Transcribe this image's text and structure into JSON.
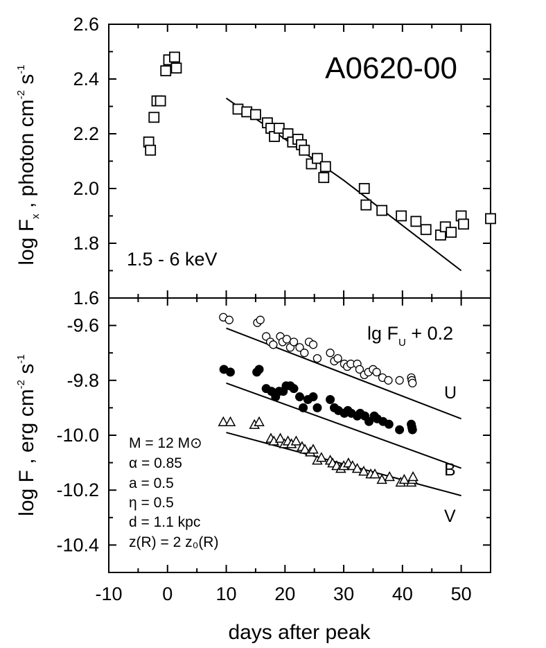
{
  "chart_data": {
    "type": "scatter",
    "x_axis": {
      "label": "days after peak",
      "range": [
        -10,
        55
      ],
      "ticks": [
        "-10",
        "0",
        "10",
        "20",
        "30",
        "40",
        "50"
      ]
    },
    "top_panel": {
      "title": "A0620-00",
      "energy_band": "1.5 - 6 keV",
      "ylabel": "log F_x , photon cm^-2 s^-1",
      "ylabel_parts": [
        "log F",
        "x",
        " ,  photon cm",
        "-2",
        " s",
        "-1"
      ],
      "yrange": [
        1.6,
        2.6
      ],
      "yticks": [
        "1.6",
        "1.8",
        "2.0",
        "2.2",
        "2.4",
        "2.6"
      ],
      "observed_points": [
        [
          -3.2,
          2.17
        ],
        [
          -2.9,
          2.14
        ],
        [
          -2.3,
          2.26
        ],
        [
          -1.8,
          2.32
        ],
        [
          -1.2,
          2.32
        ],
        [
          -0.3,
          2.43
        ],
        [
          0.2,
          2.47
        ],
        [
          1.2,
          2.48
        ],
        [
          1.5,
          2.44
        ],
        [
          12,
          2.29
        ],
        [
          13.5,
          2.28
        ],
        [
          15,
          2.27
        ],
        [
          17,
          2.24
        ],
        [
          17.6,
          2.22
        ],
        [
          18.2,
          2.19
        ],
        [
          19,
          2.22
        ],
        [
          20.5,
          2.2
        ],
        [
          21.3,
          2.17
        ],
        [
          22.2,
          2.18
        ],
        [
          22.8,
          2.16
        ],
        [
          23.3,
          2.14
        ],
        [
          24.5,
          2.09
        ],
        [
          25.5,
          2.11
        ],
        [
          26.6,
          2.04
        ],
        [
          26.9,
          2.08
        ],
        [
          33.5,
          2.0
        ],
        [
          33.8,
          1.94
        ],
        [
          36.5,
          1.92
        ],
        [
          39.8,
          1.9
        ],
        [
          42.3,
          1.88
        ],
        [
          44,
          1.85
        ],
        [
          46.5,
          1.83
        ],
        [
          47.3,
          1.86
        ],
        [
          48.3,
          1.84
        ],
        [
          50,
          1.9
        ],
        [
          50.4,
          1.87
        ],
        [
          55,
          1.89
        ]
      ],
      "model_line": [
        [
          10,
          2.33
        ],
        [
          30,
          2.03
        ],
        [
          50,
          1.7
        ]
      ]
    },
    "bottom_panel": {
      "ylabel": "log F ,  erg cm^-2 s^-1",
      "ylabel_parts": [
        "log F ,  erg cm",
        "-2",
        " s",
        "-1"
      ],
      "yrange": [
        -10.5,
        -9.5
      ],
      "yticks": [
        "-10.4",
        "-10.2",
        "-10.0",
        "-9.8",
        "-9.6"
      ],
      "offset_note": "lg F_U + 0.2",
      "offset_note_parts": [
        "lg F",
        "U",
        " + 0.2"
      ],
      "parameters": [
        "M = 12 M⊙",
        "α = 0.85",
        "a = 0.5",
        "η = 0.5",
        "d = 1.1 kpc",
        "z(R) = 2 z₀(R)"
      ],
      "series": [
        {
          "name": "U",
          "marker": "open-circle",
          "points": [
            [
              9.5,
              -9.57
            ],
            [
              10.5,
              -9.58
            ],
            [
              15.3,
              -9.59
            ],
            [
              15.8,
              -9.58
            ],
            [
              16.8,
              -9.64
            ],
            [
              17.5,
              -9.66
            ],
            [
              18,
              -9.67
            ],
            [
              19.2,
              -9.64
            ],
            [
              19.6,
              -9.66
            ],
            [
              20.3,
              -9.65
            ],
            [
              20.9,
              -9.68
            ],
            [
              21.5,
              -9.66
            ],
            [
              22.5,
              -9.68
            ],
            [
              23.3,
              -9.7
            ],
            [
              24.1,
              -9.66
            ],
            [
              24.8,
              -9.67
            ],
            [
              25.5,
              -9.72
            ],
            [
              27.7,
              -9.7
            ],
            [
              28.4,
              -9.73
            ],
            [
              29,
              -9.72
            ],
            [
              30.1,
              -9.74
            ],
            [
              30.6,
              -9.75
            ],
            [
              31.2,
              -9.74
            ],
            [
              32.3,
              -9.74
            ],
            [
              32.7,
              -9.76
            ],
            [
              33.5,
              -9.78
            ],
            [
              34.2,
              -9.77
            ],
            [
              35,
              -9.76
            ],
            [
              35.6,
              -9.77
            ],
            [
              36.6,
              -9.79
            ],
            [
              37.6,
              -9.8
            ],
            [
              39.5,
              -9.8
            ],
            [
              41.5,
              -9.79
            ],
            [
              41.6,
              -9.8
            ],
            [
              41.7,
              -9.81
            ]
          ],
          "model_line": [
            [
              10,
              -9.61
            ],
            [
              50,
              -9.94
            ]
          ]
        },
        {
          "name": "B",
          "marker": "filled-circle",
          "points": [
            [
              9.6,
              -9.76
            ],
            [
              10.7,
              -9.77
            ],
            [
              15.2,
              -9.77
            ],
            [
              15.6,
              -9.76
            ],
            [
              16.8,
              -9.83
            ],
            [
              17.7,
              -9.84
            ],
            [
              18.4,
              -9.86
            ],
            [
              19,
              -9.84
            ],
            [
              19.7,
              -9.84
            ],
            [
              20.2,
              -9.82
            ],
            [
              20.9,
              -9.82
            ],
            [
              21.5,
              -9.83
            ],
            [
              22.5,
              -9.86
            ],
            [
              23.1,
              -9.9
            ],
            [
              23.9,
              -9.87
            ],
            [
              24.8,
              -9.86
            ],
            [
              25.5,
              -9.9
            ],
            [
              27.7,
              -9.87
            ],
            [
              28.4,
              -9.9
            ],
            [
              29.1,
              -9.91
            ],
            [
              30.1,
              -9.92
            ],
            [
              30.7,
              -9.91
            ],
            [
              31.3,
              -9.92
            ],
            [
              32.3,
              -9.93
            ],
            [
              32.8,
              -9.92
            ],
            [
              33.6,
              -9.93
            ],
            [
              34.3,
              -9.95
            ],
            [
              35.2,
              -9.93
            ],
            [
              35.7,
              -9.94
            ],
            [
              36.7,
              -9.95
            ],
            [
              37.7,
              -9.96
            ],
            [
              39.5,
              -9.98
            ],
            [
              41.5,
              -9.96
            ],
            [
              41.6,
              -9.97
            ],
            [
              41.7,
              -9.98
            ]
          ],
          "model_line": [
            [
              10,
              -9.81
            ],
            [
              50,
              -10.12
            ]
          ]
        },
        {
          "name": "V",
          "marker": "open-triangle",
          "points": [
            [
              9.5,
              -9.95
            ],
            [
              10.7,
              -9.95
            ],
            [
              14.8,
              -9.96
            ],
            [
              15.6,
              -9.95
            ],
            [
              17.6,
              -10.01
            ],
            [
              18.1,
              -10.02
            ],
            [
              19.2,
              -10.01
            ],
            [
              19.9,
              -10.03
            ],
            [
              20.5,
              -10.02
            ],
            [
              21.1,
              -10.03
            ],
            [
              21.9,
              -10.02
            ],
            [
              22.9,
              -10.04
            ],
            [
              23.4,
              -10.05
            ],
            [
              24.3,
              -10.06
            ],
            [
              24.8,
              -10.05
            ],
            [
              25.5,
              -10.09
            ],
            [
              26.2,
              -10.08
            ],
            [
              27.7,
              -10.09
            ],
            [
              28.1,
              -10.1
            ],
            [
              28.8,
              -10.11
            ],
            [
              29.5,
              -10.12
            ],
            [
              30,
              -10.11
            ],
            [
              30.8,
              -10.1
            ],
            [
              31.5,
              -10.11
            ],
            [
              32.3,
              -10.12
            ],
            [
              33.4,
              -10.13
            ],
            [
              34.6,
              -10.14
            ],
            [
              35.3,
              -10.14
            ],
            [
              36.5,
              -10.16
            ],
            [
              37.8,
              -10.15
            ],
            [
              39.7,
              -10.17
            ],
            [
              40.3,
              -10.16
            ],
            [
              41.5,
              -10.17
            ],
            [
              41.7,
              -10.16
            ],
            [
              41.8,
              -10.15
            ]
          ],
          "model_line": [
            [
              10,
              -9.99
            ],
            [
              50,
              -10.22
            ]
          ]
        }
      ]
    }
  }
}
